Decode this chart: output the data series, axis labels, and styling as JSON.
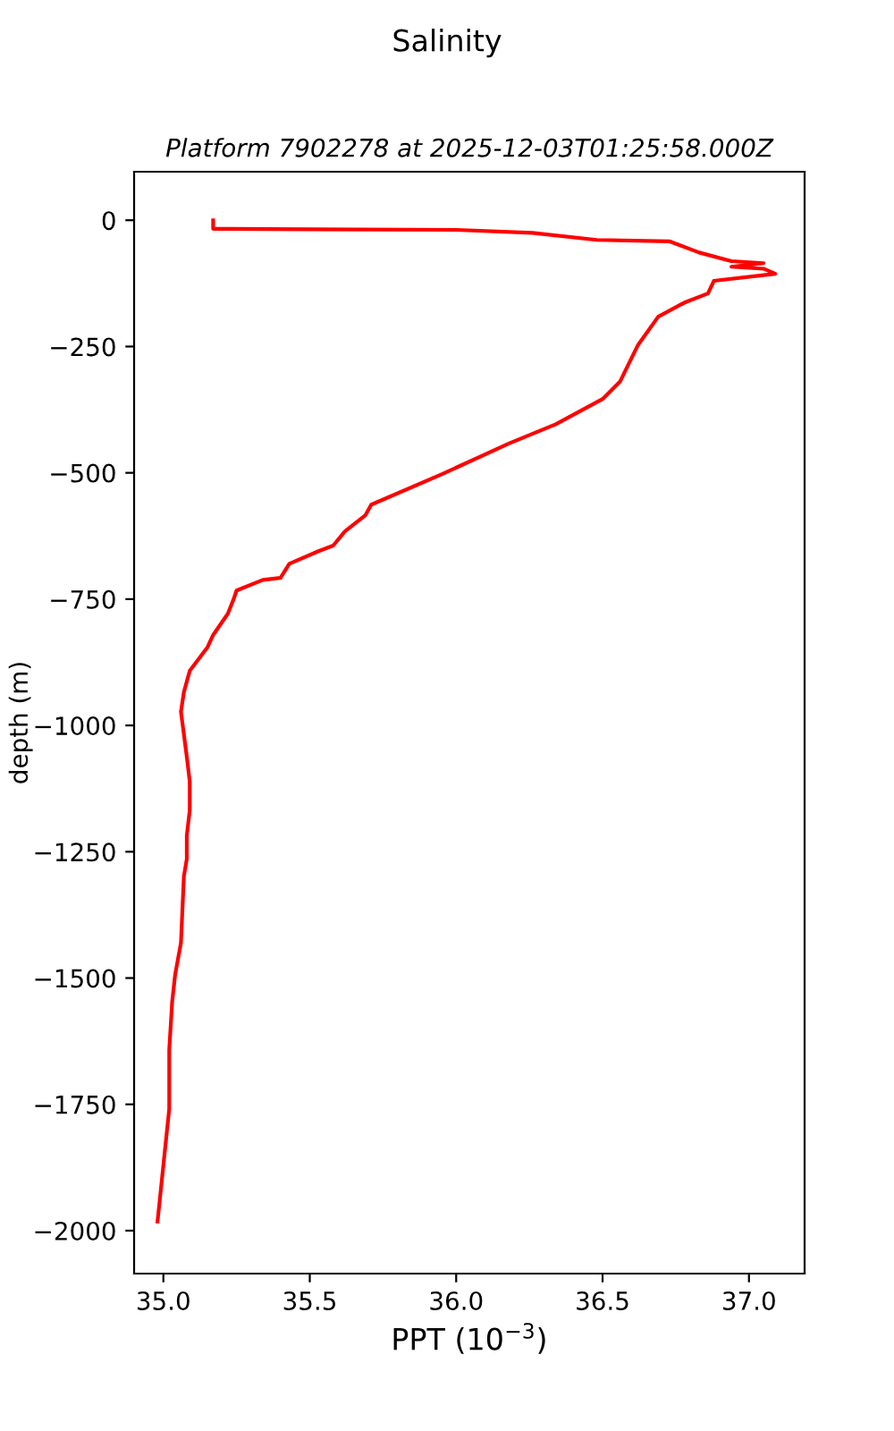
{
  "chart_data": {
    "type": "line",
    "title": "Salinity",
    "subtitle": "Platform 7902278 at 2025-12-03T01:25:58.000Z",
    "xlabel": "PPT (10$^{−3}$)",
    "ylabel": "depth (m)",
    "xlim": [
      34.9,
      37.19
    ],
    "ylim": [
      -2085,
      96
    ],
    "xticks": [
      {
        "value": 35,
        "label": "35.0"
      },
      35.5,
      {
        "value": 36,
        "label": "36.0"
      },
      36.5,
      {
        "value": 37,
        "label": "37.0"
      }
    ],
    "yticks": [
      0,
      -250,
      -500,
      -750,
      -1000,
      -1250,
      -1500,
      -1750,
      -2000
    ],
    "grid": false,
    "legend": false,
    "series": [
      {
        "color": "#ff0000",
        "x": [
          35.17,
          35.17,
          35.5,
          36.0,
          36.26,
          36.48,
          36.73,
          36.83,
          36.94,
          37.05,
          36.94,
          37.05,
          37.09,
          36.88,
          36.86,
          36.78,
          36.69,
          36.62,
          36.56,
          36.5,
          36.34,
          36.18,
          35.95,
          35.71,
          35.69,
          35.62,
          35.58,
          35.53,
          35.43,
          35.4,
          35.34,
          35.25,
          35.24,
          35.22,
          35.17,
          35.15,
          35.09,
          35.07,
          35.06,
          35.08,
          35.09,
          35.09,
          35.08,
          35.08,
          35.08,
          35.07,
          35.06,
          35.04,
          35.03,
          35.02,
          35.02,
          34.98
        ],
        "values": [
          0,
          -17,
          -18,
          -19,
          -25,
          -39,
          -42,
          -64,
          -81,
          -85,
          -92,
          -96,
          -106,
          -120,
          -145,
          -163,
          -191,
          -248,
          -319,
          -354,
          -404,
          -442,
          -503,
          -563,
          -584,
          -616,
          -644,
          -655,
          -680,
          -708,
          -712,
          -733,
          -750,
          -779,
          -821,
          -846,
          -892,
          -934,
          -973,
          -1062,
          -1111,
          -1168,
          -1218,
          -1246,
          -1264,
          -1299,
          -1430,
          -1494,
          -1547,
          -1642,
          -1759,
          -1982
        ]
      }
    ]
  }
}
